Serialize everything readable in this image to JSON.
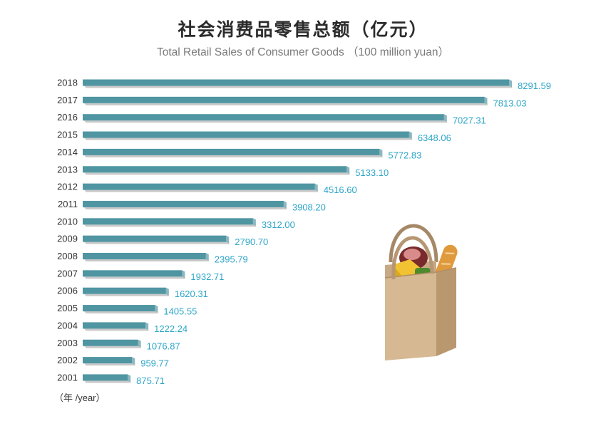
{
  "title": "社会消费品零售总额（亿元）",
  "subtitle": "Total Retail Sales of Consumer Goods （100 million yuan）",
  "unit_note": "（年 /year）",
  "colors": {
    "bar_top": "#4f95a2",
    "bar_side": "#8ab7c0",
    "bar_shadow": "#c9c9c9",
    "value_text": "#2ea6c9"
  },
  "chart_data": {
    "type": "bar",
    "orientation": "horizontal",
    "title": "社会消费品零售总额（亿元）",
    "subtitle": "Total Retail Sales of Consumer Goods （100 million yuan）",
    "categories": [
      "2018",
      "2017",
      "2016",
      "2015",
      "2014",
      "2013",
      "2012",
      "2011",
      "2010",
      "2009",
      "2008",
      "2007",
      "2006",
      "2005",
      "2004",
      "2003",
      "2002",
      "2001"
    ],
    "values": [
      8291.59,
      7813.03,
      7027.31,
      6348.06,
      5772.83,
      5133.1,
      4516.6,
      3908.2,
      3312.0,
      2790.7,
      2395.79,
      1932.71,
      1620.31,
      1405.55,
      1222.24,
      1076.87,
      959.77,
      875.71
    ],
    "value_labels": [
      "8291.59",
      "7813.03",
      "7027.31",
      "6348.06",
      "5772.83",
      "5133.10",
      "4516.60",
      "3908.20",
      "3312.00",
      "2790.70",
      "2395.79",
      "1932.71",
      "1620.31",
      "1405.55",
      "1222.24",
      "1076.87",
      "959.77",
      "875.71"
    ],
    "xlim": [
      0,
      8291.59
    ],
    "grid": false,
    "legend": "none"
  },
  "illustration": {
    "icon": "shopping-bag-with-groceries-icon"
  }
}
